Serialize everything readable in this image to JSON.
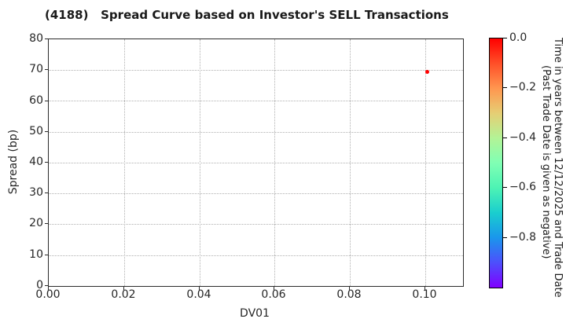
{
  "chart_data": {
    "type": "scatter",
    "title": "(4188)   Spread Curve based on Investor's SELL Transactions",
    "xlabel": "DV01",
    "ylabel": "Spread (bp)",
    "xlim": [
      0,
      0.11
    ],
    "ylim": [
      0,
      80
    ],
    "grid": true,
    "xtick_labels": [
      "0.00",
      "0.02",
      "0.04",
      "0.06",
      "0.08",
      "0.10"
    ],
    "ytick_labels": [
      "0",
      "10",
      "20",
      "30",
      "40",
      "50",
      "60",
      "70",
      "80"
    ],
    "points": [
      {
        "x": 0.1005,
        "y": 69.5,
        "color": "#ff0000",
        "colorbar_value": 0.0
      }
    ],
    "colorbar": {
      "colormap": "rainbow",
      "range": [
        -1.0,
        0.0
      ],
      "orientation": "vertical",
      "tick_labels": [
        "0.0",
        "−0.2",
        "−0.4",
        "−0.6",
        "−0.8"
      ],
      "top_color": "#ff0000",
      "bottom_color": "#8000ff",
      "label_line1": "Time in years between 12/12/2025 and Trade Date",
      "label_line2": "(Past Trade Date is given as negative)"
    }
  }
}
